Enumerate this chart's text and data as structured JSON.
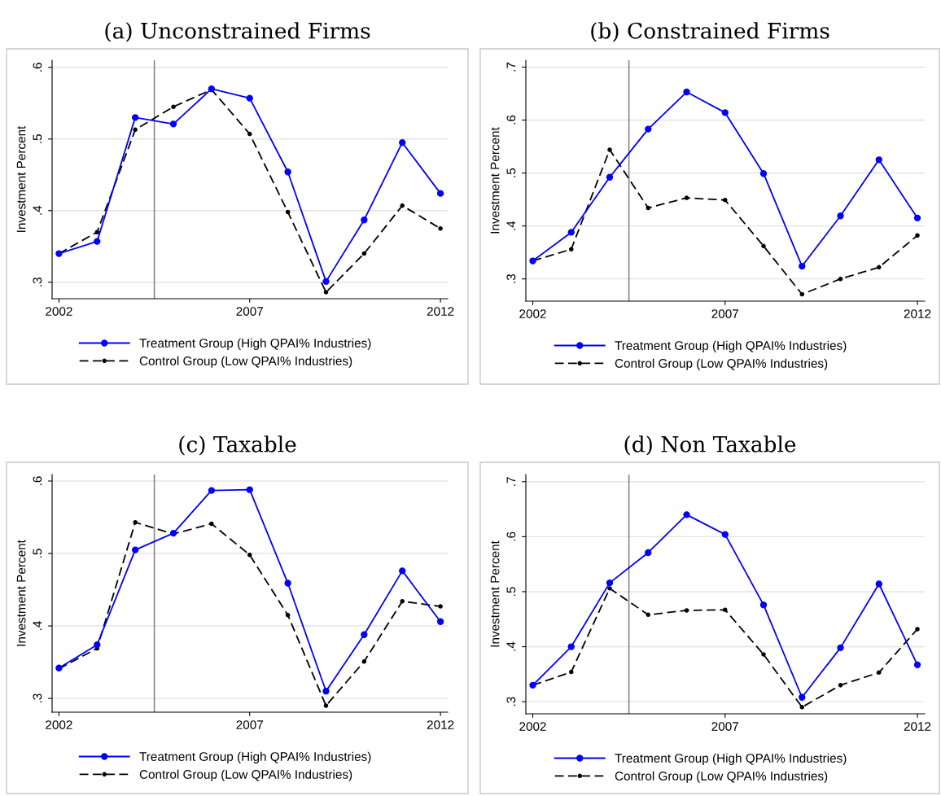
{
  "chart_data": [
    {
      "type": "line",
      "title": "(a) Unconstrained Firms",
      "ylabel": "Investment Percent",
      "x": [
        2002,
        2003,
        2004,
        2005,
        2006,
        2007,
        2008,
        2009,
        2010,
        2011,
        2012
      ],
      "xlim": [
        2001.82,
        2012.19
      ],
      "xticks": [
        2002,
        2007,
        2012
      ],
      "ylim": [
        0.277,
        0.61
      ],
      "yticks": [
        {
          "value": 0.3,
          "label": ".3"
        },
        {
          "value": 0.4,
          "label": ".4"
        },
        {
          "value": 0.5,
          "label": ".5"
        },
        {
          "value": 0.6,
          "label": ".6"
        }
      ],
      "grid": "y",
      "legend": "bottom",
      "ref_lines": [
        {
          "axis": "x",
          "value": 2004.5,
          "color": "#808080"
        }
      ],
      "series": [
        {
          "name": "Treatment Group (High QPAI% Industries)",
          "color": "#0000ff",
          "marker": "circle",
          "line_style": "solid",
          "values": [
            0.34,
            0.357,
            0.53,
            0.521,
            0.57,
            0.557,
            0.454,
            0.301,
            0.387,
            0.495,
            0.424
          ]
        },
        {
          "name": "Control Group (Low QPAI% Industries)",
          "color": "#000000",
          "marker": "circle",
          "line_style": "dashed",
          "values": [
            0.34,
            0.37,
            0.513,
            0.545,
            0.569,
            0.507,
            0.398,
            0.286,
            0.34,
            0.407,
            0.375
          ]
        }
      ]
    },
    {
      "type": "line",
      "title": "(b) Constrained Firms",
      "ylabel": "Investment Percent",
      "x": [
        2002,
        2003,
        2004,
        2005,
        2006,
        2007,
        2008,
        2009,
        2010,
        2011,
        2012
      ],
      "xlim": [
        2001.82,
        2012.19
      ],
      "xticks": [
        2002,
        2007,
        2012
      ],
      "ylim": [
        0.258,
        0.713
      ],
      "yticks": [
        {
          "value": 0.3,
          "label": ".3"
        },
        {
          "value": 0.4,
          "label": ".4"
        },
        {
          "value": 0.5,
          "label": ".5"
        },
        {
          "value": 0.6,
          "label": ".6"
        },
        {
          "value": 0.7,
          "label": ".7"
        }
      ],
      "grid": "y",
      "legend": "bottom",
      "ref_lines": [
        {
          "axis": "x",
          "value": 2004.5,
          "color": "#808080"
        }
      ],
      "series": [
        {
          "name": "Treatment Group (High QPAI% Industries)",
          "color": "#0000ff",
          "marker": "circle",
          "line_style": "solid",
          "values": [
            0.334,
            0.388,
            0.492,
            0.583,
            0.653,
            0.614,
            0.499,
            0.324,
            0.419,
            0.525,
            0.415
          ]
        },
        {
          "name": "Control Group (Low QPAI% Industries)",
          "color": "#000000",
          "marker": "circle",
          "line_style": "dashed",
          "values": [
            0.334,
            0.356,
            0.544,
            0.434,
            0.453,
            0.449,
            0.362,
            0.271,
            0.3,
            0.322,
            0.382
          ]
        }
      ]
    },
    {
      "type": "line",
      "title": "(c) Taxable",
      "ylabel": "Investment Percent",
      "x": [
        2002,
        2003,
        2004,
        2005,
        2006,
        2007,
        2008,
        2009,
        2010,
        2011,
        2012
      ],
      "xlim": [
        2001.82,
        2012.19
      ],
      "xticks": [
        2002,
        2007,
        2012
      ],
      "ylim": [
        0.281,
        0.609
      ],
      "yticks": [
        {
          "value": 0.3,
          "label": ".3"
        },
        {
          "value": 0.4,
          "label": ".4"
        },
        {
          "value": 0.5,
          "label": ".5"
        },
        {
          "value": 0.6,
          "label": ".6"
        }
      ],
      "grid": "y",
      "legend": "bottom",
      "ref_lines": [
        {
          "axis": "x",
          "value": 2004.5,
          "color": "#808080"
        }
      ],
      "series": [
        {
          "name": "Treatment Group (High QPAI% Industries)",
          "color": "#0000ff",
          "marker": "circle",
          "line_style": "solid",
          "values": [
            0.342,
            0.374,
            0.505,
            0.528,
            0.587,
            0.588,
            0.459,
            0.31,
            0.388,
            0.476,
            0.406
          ]
        },
        {
          "name": "Control Group (Low QPAI% Industries)",
          "color": "#000000",
          "marker": "circle",
          "line_style": "dashed",
          "values": [
            0.341,
            0.369,
            0.543,
            0.527,
            0.541,
            0.498,
            0.415,
            0.29,
            0.351,
            0.434,
            0.427
          ]
        }
      ]
    },
    {
      "type": "line",
      "title": "(d) Non Taxable",
      "ylabel": "Investment Percent",
      "x": [
        2002,
        2003,
        2004,
        2005,
        2006,
        2007,
        2008,
        2009,
        2010,
        2011,
        2012
      ],
      "xlim": [
        2001.82,
        2012.19
      ],
      "xticks": [
        2002,
        2007,
        2012
      ],
      "ylim": [
        0.278,
        0.713
      ],
      "yticks": [
        {
          "value": 0.3,
          "label": ".3"
        },
        {
          "value": 0.4,
          "label": ".4"
        },
        {
          "value": 0.5,
          "label": ".5"
        },
        {
          "value": 0.6,
          "label": ".6"
        },
        {
          "value": 0.7,
          "label": ".7"
        }
      ],
      "grid": "y",
      "legend": "bottom",
      "ref_lines": [
        {
          "axis": "x",
          "value": 2004.5,
          "color": "#808080"
        }
      ],
      "series": [
        {
          "name": "Treatment Group (High QPAI% Industries)",
          "color": "#0000ff",
          "marker": "circle",
          "line_style": "solid",
          "values": [
            0.33,
            0.4,
            0.516,
            0.571,
            0.64,
            0.604,
            0.476,
            0.308,
            0.398,
            0.514,
            0.367
          ]
        },
        {
          "name": "Control Group (Low QPAI% Industries)",
          "color": "#000000",
          "marker": "circle",
          "line_style": "dashed",
          "values": [
            0.33,
            0.354,
            0.506,
            0.458,
            0.466,
            0.467,
            0.386,
            0.29,
            0.33,
            0.353,
            0.432
          ]
        }
      ]
    }
  ]
}
